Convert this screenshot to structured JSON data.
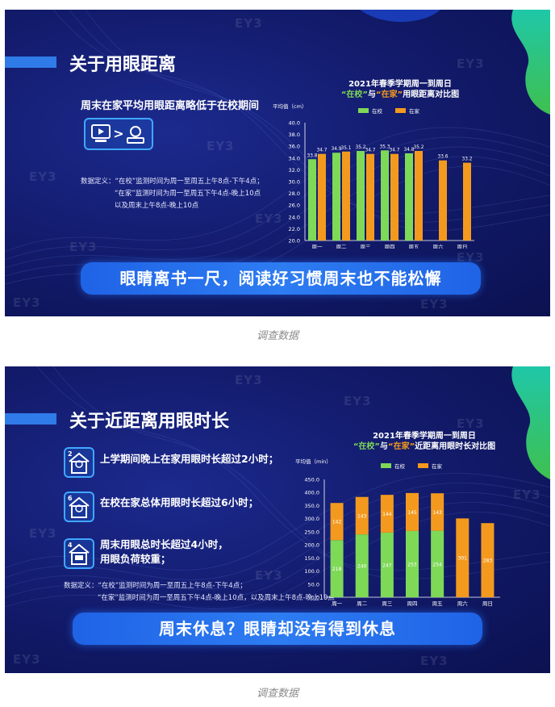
{
  "colors": {
    "school": "#7ed957",
    "home": "#f39a1e",
    "accent": "#2f7be8",
    "background": "#131c6e"
  },
  "watermark": "EY3",
  "panel1": {
    "title": "关于用眼距离",
    "subtitle": "周末在家平均用眼距离略低于在校期间",
    "icon": "screen-greater-than-person-icon",
    "icon_symbol": ">",
    "note": {
      "line1": "数据定义：“在校”监测时间为周一至周五上午8点-下午4点；",
      "line2": "“在家”监测时间为周一至周五下午4点-晚上10点",
      "line3": "以及周末上午8点-晚上10点"
    },
    "banner": "眼睛离书一尺，阅读好习惯周末也不能松懈",
    "chart_title_line1": "2021年春季学期周一到周日",
    "chart_title_q1": "“在校”",
    "chart_title_mid": "与",
    "chart_title_q2": "“在家”",
    "chart_title_tail": "用眼距离对比图"
  },
  "panel2": {
    "title": "关于近距离用眼时长",
    "items": [
      {
        "badge": "2",
        "icon": "house-clock-icon",
        "text": "上学期间晚上在家用眼时长超过2小时；"
      },
      {
        "badge": "6",
        "icon": "house-clock-icon",
        "text": "在校在家总体用眼时长超过6小时；"
      },
      {
        "badge": "4",
        "icon": "house-screen-icon",
        "text": "周末用眼总时长超过4小时，\n用眼负荷较重；"
      }
    ],
    "note": {
      "line1": "数据定义：“在校”监测时间为周一至周五上午8点-下午4点；",
      "line2": "“在家”监测时间为周一至周五下午4点-晚上10点，以及周末上午8点-晚上10点"
    },
    "banner": "周末休息？眼睛却没有得到休息",
    "chart_title_line1": "2021年春季学期周一到周日",
    "chart_title_q1": "“在校”",
    "chart_title_mid": "与",
    "chart_title_q2": "“在家”",
    "chart_title_tail": "近距离用眼时长对比图"
  },
  "caption1": "调查数据",
  "caption2": "调查数据",
  "chart_data": [
    {
      "type": "bar",
      "title": "2021年春季学期周一到周日 “在校”与“在家”用眼距离对比图",
      "ylabel": "平均值（cm）",
      "categories": [
        "周一",
        "周二",
        "周三",
        "周四",
        "周五",
        "周六",
        "周日"
      ],
      "series": [
        {
          "name": "在校",
          "values": [
            33.8,
            34.9,
            35.2,
            35.3,
            34.8,
            null,
            null
          ]
        },
        {
          "name": "在家",
          "values": [
            34.7,
            35.1,
            34.7,
            34.7,
            35.2,
            33.6,
            33.2
          ]
        }
      ],
      "ylim": [
        20.0,
        40.0
      ],
      "yticks": [
        "40.0",
        "38.0",
        "36.0",
        "34.0",
        "32.0",
        "30.0",
        "28.0",
        "26.0",
        "24.0",
        "22.0",
        "20.0"
      ],
      "grid": false,
      "legend": "top"
    },
    {
      "type": "bar",
      "stacked": true,
      "title": "2021年春季学期周一到周日 “在校”与“在家”近距离用眼时长对比图",
      "ylabel": "平均值（min）",
      "categories": [
        "周一",
        "周二",
        "周三",
        "周四",
        "周五",
        "周六",
        "周日"
      ],
      "series": [
        {
          "name": "在校",
          "values": [
            218,
            240,
            247,
            253,
            254,
            null,
            null
          ]
        },
        {
          "name": "在家",
          "values": [
            142,
            143,
            144,
            145,
            143,
            301,
            283
          ]
        }
      ],
      "ylim": [
        0,
        450
      ],
      "yticks": [
        "450.0",
        "400.0",
        "350.0",
        "300.0",
        "250.0",
        "200.0",
        "150.0",
        "100.0",
        "50.0",
        "0.0"
      ],
      "grid": false,
      "legend": "top"
    }
  ]
}
